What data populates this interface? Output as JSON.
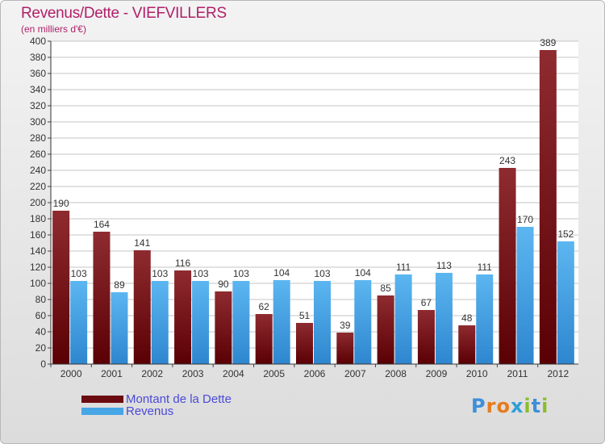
{
  "chart_data": {
    "type": "bar",
    "title": "Revenus/Dette - VIEFVILLERS",
    "subtitle": "(en milliers d'€)",
    "categories": [
      "2000",
      "2001",
      "2002",
      "2003",
      "2004",
      "2005",
      "2006",
      "2007",
      "2008",
      "2009",
      "2010",
      "2011",
      "2012"
    ],
    "series": [
      {
        "name": "Montant de la Dette",
        "color": "#7a1a1e",
        "values": [
          190,
          164,
          141,
          116,
          90,
          62,
          51,
          39,
          85,
          67,
          48,
          243,
          389
        ]
      },
      {
        "name": "Revenus",
        "color": "#4aa8e8",
        "values": [
          103,
          89,
          103,
          103,
          103,
          104,
          103,
          104,
          111,
          113,
          111,
          170,
          152
        ]
      }
    ],
    "ylim": [
      0,
      400
    ],
    "yticks": [
      0,
      20,
      40,
      60,
      80,
      100,
      120,
      140,
      160,
      180,
      200,
      220,
      240,
      260,
      280,
      300,
      320,
      340,
      360,
      380,
      400
    ],
    "grid": true,
    "legend_position": "bottom-left"
  },
  "logo": {
    "letters": [
      "P",
      "r",
      "o",
      "x",
      "i",
      "t",
      "i"
    ]
  }
}
